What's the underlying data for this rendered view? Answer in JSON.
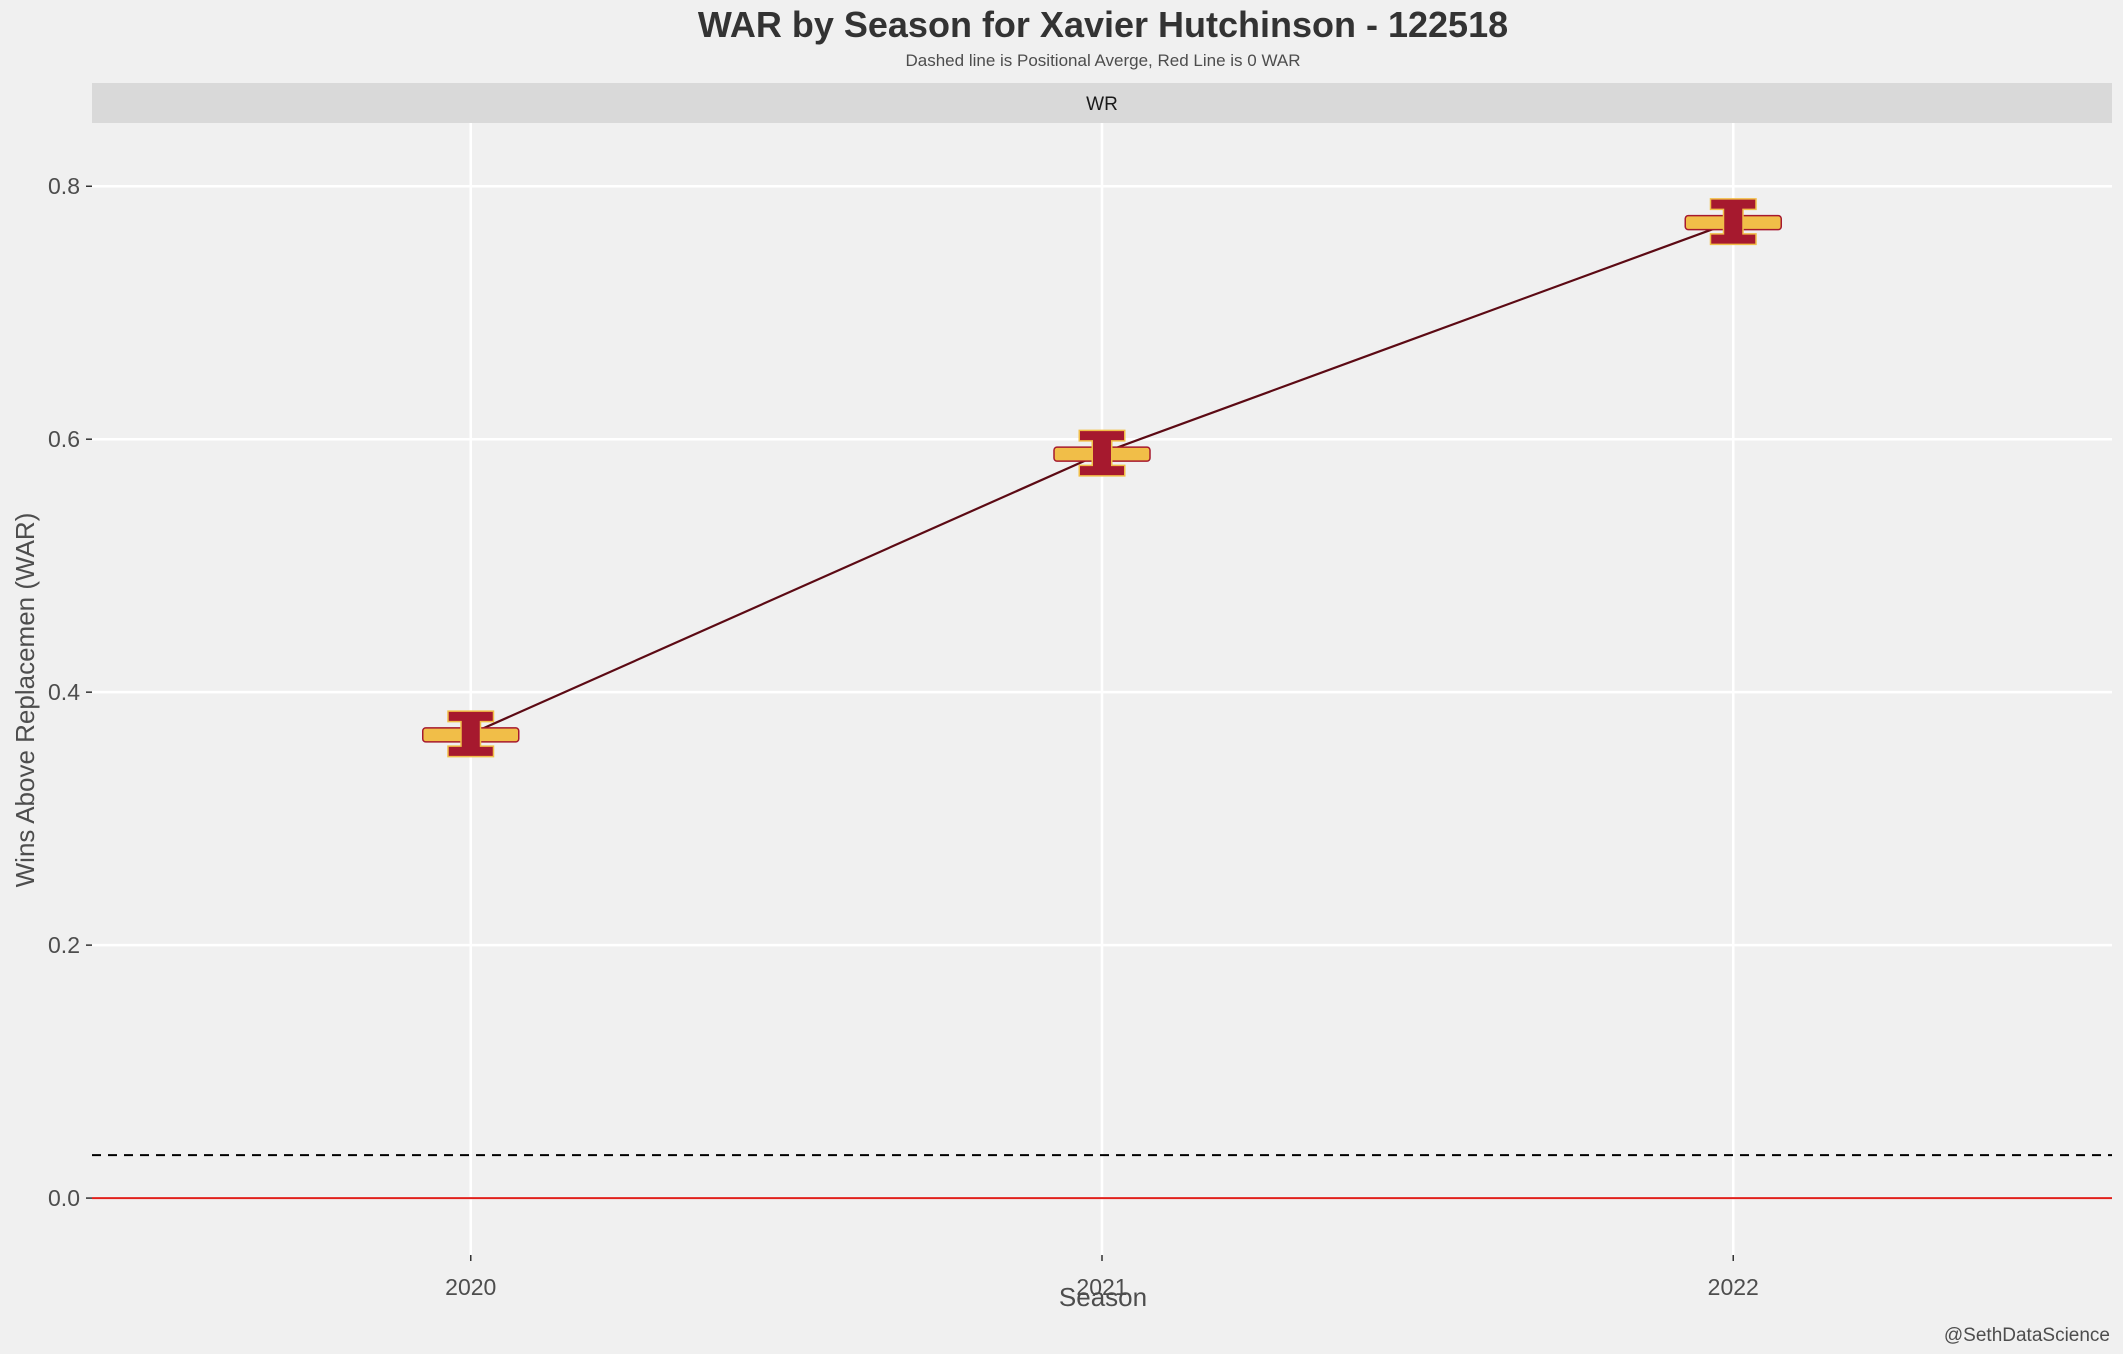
{
  "chart_data": {
    "type": "line",
    "title": "WAR by Season for Xavier Hutchinson - 122518",
    "subtitle": "Dashed line is Positional Averge, Red Line is 0 WAR",
    "facet_label": "WR",
    "xlabel": "Season",
    "ylabel": "Wins Above Replacemen (WAR)",
    "caption": "@SethDataScience",
    "x": [
      "2020",
      "2021",
      "2022"
    ],
    "series": [
      {
        "values": [
          0.367,
          0.589,
          0.772
        ],
        "color": "#5c0a14",
        "marker": "iowa-state-logo"
      }
    ],
    "reference_lines": [
      {
        "y": 0.034,
        "style": "dashed",
        "color": "#000000",
        "meaning": "positional average"
      },
      {
        "y": 0.0,
        "style": "solid",
        "color": "#e0201b",
        "meaning": "0 WAR"
      }
    ],
    "yticks": [
      "0.0",
      "0.2",
      "0.4",
      "0.6",
      "0.8"
    ],
    "ylim": [
      -0.045,
      0.85
    ],
    "grid": true,
    "legend": "none",
    "colors": {
      "background": "#f0f0f0",
      "strip": "#d9d9d9",
      "gridline": "#ffffff",
      "line": "#5c0a14",
      "zero_line": "#e0201b",
      "logo_red": "#a6192e",
      "logo_gold": "#f1be48"
    }
  }
}
